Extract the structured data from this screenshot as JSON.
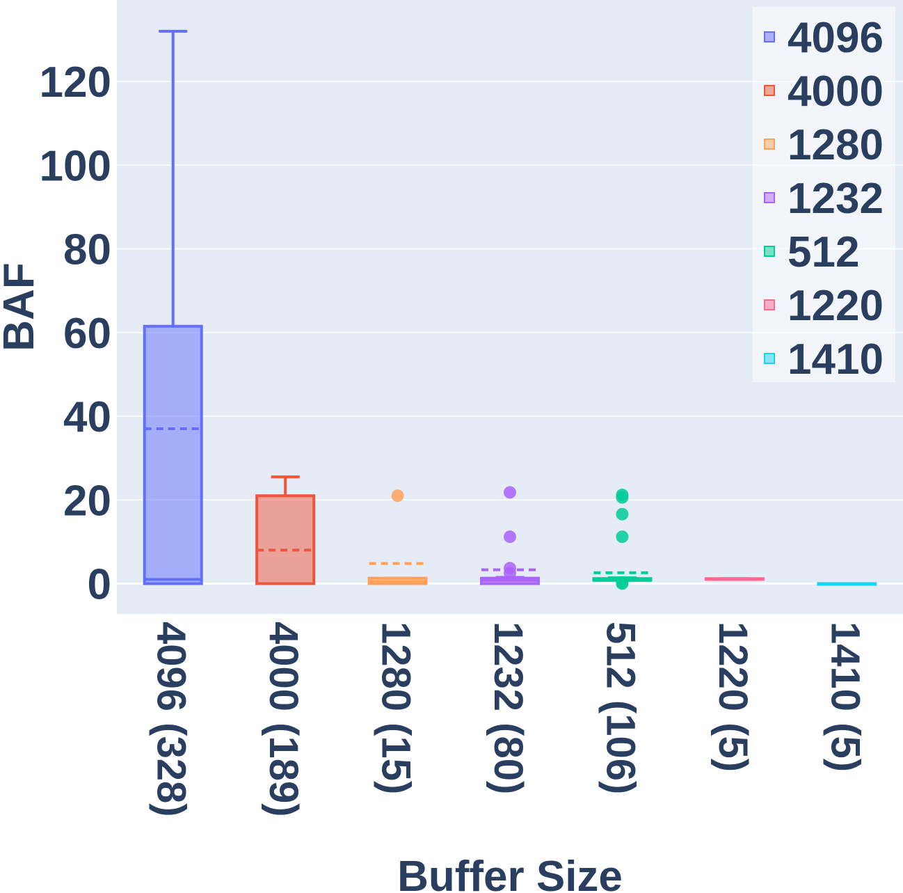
{
  "chart_data": {
    "type": "box",
    "title": "",
    "xlabel": "Buffer Size",
    "ylabel": "BAF",
    "ylim": [
      -7.5,
      140
    ],
    "yticks": [
      0,
      20,
      40,
      60,
      80,
      100,
      120
    ],
    "grid": true,
    "legend_position": "top-right",
    "categories": [
      "4096 (328)",
      "4000 (189)",
      "1280 (15)",
      "1232 (80)",
      "512 (106)",
      "1220 (5)",
      "1410 (5)"
    ],
    "series": [
      {
        "name": "4096",
        "color": "#636efa",
        "min": 0,
        "q1": 0,
        "median": 1,
        "q3": 61.5,
        "max": 132,
        "mean": 37,
        "outliers": []
      },
      {
        "name": "4000",
        "color": "#ef553b",
        "min": 0,
        "q1": 0,
        "median": 0,
        "q3": 21,
        "max": 25.5,
        "mean": 8,
        "outliers": []
      },
      {
        "name": "1280",
        "color": "#ffa15a",
        "min": 0,
        "q1": 0,
        "median": 0.5,
        "q3": 1.3,
        "max": 1.3,
        "mean": 4.8,
        "outliers": [
          21
        ]
      },
      {
        "name": "1232",
        "color": "#ab63fa",
        "min": 0,
        "q1": 0,
        "median": 0.8,
        "q3": 1.3,
        "max": 1.5,
        "mean": 3.3,
        "outliers": [
          2.5,
          3.7,
          11.2,
          21.8
        ]
      },
      {
        "name": "512",
        "color": "#00cc96",
        "min": 0.8,
        "q1": 0.8,
        "median": 0.8,
        "q3": 1.2,
        "max": 1.4,
        "mean": 2.6,
        "outliers": [
          0,
          0.3,
          11.2,
          16.6,
          20.6,
          21.2
        ]
      },
      {
        "name": "1220",
        "color": "#ff6692",
        "min": 1,
        "q1": 1,
        "median": 1.1,
        "q3": 1.2,
        "max": 1.2,
        "mean": 1.1,
        "outliers": []
      },
      {
        "name": "1410",
        "color": "#19d3f3",
        "min": 0,
        "q1": 0,
        "median": 0,
        "q3": 0,
        "max": 0,
        "mean": 0,
        "outliers": []
      }
    ]
  }
}
